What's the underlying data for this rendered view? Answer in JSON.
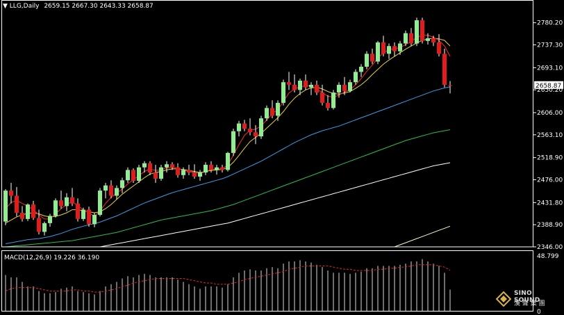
{
  "header": {
    "symbol_period": "LLG,Daily",
    "ohlc": "2659.15 2667.30 2643.33 2658.87",
    "macd_label": "MACD(12,26,9) 19.226 36.190"
  },
  "colors": {
    "background": "#000000",
    "bull": "#90EE90",
    "bear": "#E21B1B",
    "wick": "#FFFFFF",
    "ma_fast": "#FF2A2A",
    "ma_5": "#E6D23A",
    "ma_20": "#3B9BE8",
    "ma_40": "#2DBE4F",
    "ma_60": "#FFFFFF",
    "ma_120": "#FFF8C8",
    "axis": "#FFFFFF",
    "macd_hist": "#DDDDDD",
    "macd_signal": "#E0282A",
    "price_tag_bg": "#FFFFFF",
    "price_tag_text": "#000000"
  },
  "watermark": {
    "line1": "SINO SOUND",
    "line2": "漢 聲 集 團",
    "icon": "diamond-logo-icon"
  },
  "chart_data": [
    {
      "type": "candlestick",
      "title": "LLG,Daily",
      "ylim": [
        2346.0,
        2800.0
      ],
      "price_axis_ticks": [
        "2780.20",
        "2737.30",
        "2693.10",
        "2650.20",
        "2606.00",
        "2563.10",
        "2518.90",
        "2476.00",
        "2431.80",
        "2388.90",
        "2346.00"
      ],
      "last_price_label": "2658.87",
      "candles": [
        [
          2395,
          2458,
          2388,
          2455
        ],
        [
          2455,
          2470,
          2430,
          2445
        ],
        [
          2445,
          2462,
          2405,
          2412
        ],
        [
          2412,
          2425,
          2395,
          2400
        ],
        [
          2400,
          2430,
          2396,
          2428
        ],
        [
          2428,
          2435,
          2398,
          2402
        ],
        [
          2402,
          2418,
          2370,
          2375
        ],
        [
          2375,
          2395,
          2368,
          2392
        ],
        [
          2392,
          2410,
          2385,
          2406
        ],
        [
          2406,
          2440,
          2403,
          2436
        ],
        [
          2436,
          2455,
          2420,
          2425
        ],
        [
          2425,
          2450,
          2415,
          2442
        ],
        [
          2442,
          2460,
          2425,
          2430
        ],
        [
          2430,
          2440,
          2395,
          2400
        ],
        [
          2400,
          2422,
          2396,
          2418
        ],
        [
          2418,
          2424,
          2385,
          2390
        ],
        [
          2390,
          2412,
          2384,
          2408
        ],
        [
          2408,
          2460,
          2405,
          2455
        ],
        [
          2455,
          2470,
          2440,
          2465
        ],
        [
          2465,
          2475,
          2440,
          2445
        ],
        [
          2445,
          2465,
          2438,
          2460
        ],
        [
          2460,
          2480,
          2450,
          2475
        ],
        [
          2475,
          2500,
          2470,
          2495
        ],
        [
          2495,
          2498,
          2470,
          2474
        ],
        [
          2474,
          2505,
          2470,
          2500
        ],
        [
          2500,
          2512,
          2490,
          2508
        ],
        [
          2508,
          2512,
          2485,
          2490
        ],
        [
          2490,
          2505,
          2470,
          2478
        ],
        [
          2478,
          2505,
          2474,
          2500
        ],
        [
          2500,
          2512,
          2490,
          2506
        ],
        [
          2506,
          2510,
          2495,
          2500
        ],
        [
          2500,
          2508,
          2480,
          2485
        ],
        [
          2485,
          2500,
          2478,
          2495
        ],
        [
          2495,
          2505,
          2485,
          2490
        ],
        [
          2490,
          2506,
          2478,
          2482
        ],
        [
          2482,
          2495,
          2474,
          2490
        ],
        [
          2490,
          2510,
          2485,
          2505
        ],
        [
          2505,
          2512,
          2490,
          2495
        ],
        [
          2495,
          2505,
          2486,
          2500
        ],
        [
          2500,
          2505,
          2490,
          2495
        ],
        [
          2495,
          2530,
          2492,
          2528
        ],
        [
          2528,
          2575,
          2522,
          2570
        ],
        [
          2570,
          2590,
          2560,
          2585
        ],
        [
          2585,
          2592,
          2570,
          2575
        ],
        [
          2575,
          2595,
          2562,
          2568
        ],
        [
          2568,
          2582,
          2545,
          2560
        ],
        [
          2560,
          2600,
          2555,
          2595
        ],
        [
          2595,
          2620,
          2590,
          2615
        ],
        [
          2615,
          2630,
          2595,
          2600
        ],
        [
          2600,
          2630,
          2590,
          2625
        ],
        [
          2625,
          2670,
          2620,
          2665
        ],
        [
          2665,
          2685,
          2650,
          2660
        ],
        [
          2660,
          2680,
          2645,
          2650
        ],
        [
          2650,
          2672,
          2640,
          2668
        ],
        [
          2668,
          2680,
          2650,
          2655
        ],
        [
          2655,
          2665,
          2640,
          2660
        ],
        [
          2660,
          2668,
          2640,
          2645
        ],
        [
          2645,
          2660,
          2620,
          2625
        ],
        [
          2625,
          2640,
          2610,
          2615
        ],
        [
          2615,
          2650,
          2612,
          2645
        ],
        [
          2645,
          2665,
          2635,
          2660
        ],
        [
          2660,
          2675,
          2640,
          2648
        ],
        [
          2648,
          2670,
          2645,
          2665
        ],
        [
          2665,
          2690,
          2660,
          2685
        ],
        [
          2685,
          2700,
          2675,
          2695
        ],
        [
          2695,
          2725,
          2690,
          2720
        ],
        [
          2720,
          2730,
          2700,
          2705
        ],
        [
          2705,
          2745,
          2700,
          2742
        ],
        [
          2742,
          2755,
          2715,
          2720
        ],
        [
          2720,
          2740,
          2710,
          2735
        ],
        [
          2735,
          2742,
          2715,
          2725
        ],
        [
          2725,
          2745,
          2718,
          2740
        ],
        [
          2740,
          2765,
          2735,
          2760
        ],
        [
          2760,
          2770,
          2735,
          2740
        ],
        [
          2740,
          2790,
          2735,
          2785
        ],
        [
          2785,
          2790,
          2740,
          2745
        ],
        [
          2745,
          2760,
          2738,
          2750
        ],
        [
          2750,
          2755,
          2735,
          2742
        ],
        [
          2742,
          2758,
          2715,
          2720
        ],
        [
          2720,
          2730,
          2655,
          2660
        ],
        [
          2659.15,
          2667.3,
          2643.33,
          2658.87
        ]
      ],
      "ma_fast": [
        2420,
        2432,
        2436,
        2430,
        2425,
        2418,
        2408,
        2400,
        2400,
        2410,
        2420,
        2428,
        2434,
        2425,
        2418,
        2412,
        2405,
        2416,
        2430,
        2442,
        2450,
        2458,
        2468,
        2476,
        2484,
        2492,
        2497,
        2494,
        2495,
        2499,
        2500,
        2498,
        2494,
        2492,
        2490,
        2488,
        2492,
        2496,
        2497,
        2497,
        2505,
        2524,
        2544,
        2562,
        2572,
        2574,
        2580,
        2592,
        2604,
        2612,
        2628,
        2644,
        2652,
        2656,
        2658,
        2658,
        2652,
        2645,
        2638,
        2636,
        2640,
        2646,
        2650,
        2660,
        2672,
        2686,
        2698,
        2712,
        2722,
        2728,
        2730,
        2732,
        2738,
        2744,
        2752,
        2756,
        2756,
        2752,
        2746,
        2735,
        2715
      ],
      "ma_5": [
        2392,
        2398,
        2404,
        2408,
        2411,
        2412,
        2410,
        2406,
        2404,
        2405,
        2408,
        2412,
        2418,
        2418,
        2416,
        2414,
        2412,
        2414,
        2420,
        2428,
        2438,
        2448,
        2456,
        2464,
        2472,
        2480,
        2487,
        2490,
        2492,
        2495,
        2497,
        2497,
        2496,
        2494,
        2492,
        2490,
        2492,
        2494,
        2495,
        2496,
        2500,
        2510,
        2523,
        2537,
        2550,
        2558,
        2566,
        2576,
        2586,
        2596,
        2608,
        2622,
        2634,
        2643,
        2650,
        2654,
        2655,
        2652,
        2647,
        2643,
        2642,
        2644,
        2647,
        2653,
        2660,
        2669,
        2680,
        2690,
        2700,
        2708,
        2715,
        2722,
        2729,
        2735,
        2741,
        2746,
        2749,
        2750,
        2749,
        2746,
        2735
      ],
      "ma_20": [
        2352,
        2354,
        2356,
        2358,
        2360,
        2361,
        2362,
        2364,
        2366,
        2369,
        2372,
        2376,
        2380,
        2383,
        2386,
        2389,
        2391,
        2394,
        2398,
        2402,
        2406,
        2411,
        2416,
        2421,
        2426,
        2431,
        2435,
        2439,
        2443,
        2447,
        2451,
        2454,
        2457,
        2460,
        2463,
        2466,
        2469,
        2472,
        2475,
        2478,
        2482,
        2487,
        2492,
        2497,
        2502,
        2507,
        2512,
        2518,
        2524,
        2530,
        2536,
        2542,
        2548,
        2553,
        2558,
        2563,
        2567,
        2571,
        2574,
        2577,
        2580,
        2584,
        2588,
        2592,
        2596,
        2600,
        2604,
        2608,
        2612,
        2616,
        2620,
        2624,
        2628,
        2632,
        2636,
        2640,
        2644,
        2648,
        2651,
        2654,
        2656
      ],
      "ma_40": [
        2346,
        2347,
        2348,
        2349,
        2350,
        2351,
        2352,
        2353,
        2354,
        2355,
        2356,
        2357,
        2358,
        2360,
        2362,
        2364,
        2366,
        2368,
        2370,
        2372,
        2374,
        2377,
        2380,
        2383,
        2386,
        2389,
        2392,
        2395,
        2398,
        2400,
        2402,
        2404,
        2406,
        2408,
        2410,
        2412,
        2414,
        2416,
        2419,
        2422,
        2425,
        2428,
        2432,
        2436,
        2440,
        2444,
        2448,
        2452,
        2456,
        2460,
        2464,
        2468,
        2472,
        2476,
        2480,
        2484,
        2488,
        2492,
        2496,
        2500,
        2504,
        2508,
        2512,
        2516,
        2520,
        2524,
        2528,
        2532,
        2536,
        2540,
        2544,
        2548,
        2552,
        2555,
        2558,
        2561,
        2564,
        2567,
        2569,
        2571,
        2573
      ],
      "ma_60": [
        null,
        null,
        null,
        null,
        null,
        null,
        null,
        null,
        null,
        null,
        null,
        null,
        null,
        null,
        null,
        null,
        null,
        2346,
        2348,
        2350,
        2352,
        2354,
        2356,
        2358,
        2360,
        2362,
        2364,
        2366,
        2368,
        2370,
        2372,
        2374,
        2376,
        2378,
        2380,
        2382,
        2384,
        2386,
        2388,
        2390,
        2392,
        2395,
        2398,
        2401,
        2404,
        2407,
        2410,
        2413,
        2416,
        2419,
        2422,
        2425,
        2428,
        2431,
        2434,
        2437,
        2440,
        2443,
        2446,
        2449,
        2452,
        2455,
        2458,
        2461,
        2464,
        2467,
        2470,
        2473,
        2476,
        2479,
        2482,
        2485,
        2488,
        2491,
        2494,
        2497,
        2500,
        2503,
        2505,
        2507,
        2509
      ],
      "ma_120": [
        null,
        null,
        null,
        null,
        null,
        null,
        null,
        null,
        null,
        null,
        null,
        null,
        null,
        null,
        null,
        null,
        null,
        null,
        null,
        null,
        null,
        null,
        null,
        null,
        null,
        null,
        null,
        null,
        null,
        null,
        null,
        null,
        null,
        null,
        null,
        null,
        null,
        null,
        null,
        null,
        null,
        null,
        null,
        null,
        null,
        null,
        null,
        null,
        null,
        null,
        null,
        null,
        null,
        null,
        null,
        null,
        null,
        null,
        null,
        null,
        null,
        null,
        null,
        null,
        null,
        null,
        null,
        null,
        null,
        null,
        2346,
        2350,
        2354,
        2358,
        2362,
        2366,
        2370,
        2374,
        2378,
        2382,
        2386
      ]
    },
    {
      "type": "macd",
      "title": "MACD(12,26,9) 19.226 36.190",
      "ylim": [
        0,
        48.799
      ],
      "axis_ticks": [
        "48.799",
        "0"
      ],
      "histogram": [
        32,
        30,
        30,
        26,
        22,
        22,
        18,
        16,
        16,
        17,
        20,
        21,
        22,
        18,
        17,
        16,
        15,
        18,
        22,
        24,
        26,
        29,
        31,
        30,
        32,
        33,
        32,
        30,
        30,
        30,
        30,
        28,
        26,
        24,
        22,
        20,
        22,
        22,
        22,
        21,
        24,
        30,
        34,
        36,
        37,
        36,
        36,
        38,
        39,
        38,
        42,
        44,
        44,
        45,
        44,
        43,
        41,
        39,
        36,
        34,
        34,
        34,
        33,
        34,
        35,
        38,
        38,
        40,
        40,
        40,
        40,
        41,
        42,
        44,
        44,
        46,
        44,
        42,
        40,
        34,
        19.226
      ],
      "signal": [
        18,
        20,
        21,
        21,
        21,
        21,
        20,
        19,
        18,
        18,
        18,
        18,
        19,
        19,
        18,
        18,
        17,
        17,
        18,
        19,
        20,
        22,
        23,
        25,
        26,
        27,
        28,
        29,
        29,
        29,
        29,
        29,
        29,
        28,
        27,
        26,
        25,
        25,
        24,
        24,
        24,
        25,
        26,
        28,
        29,
        30,
        31,
        32,
        33,
        34,
        35,
        37,
        38,
        39,
        40,
        40,
        40,
        40,
        40,
        39,
        38,
        37,
        37,
        36,
        36,
        36,
        36,
        37,
        37,
        38,
        38,
        39,
        39,
        40,
        41,
        41,
        41,
        41,
        40,
        39,
        36.19
      ]
    }
  ]
}
